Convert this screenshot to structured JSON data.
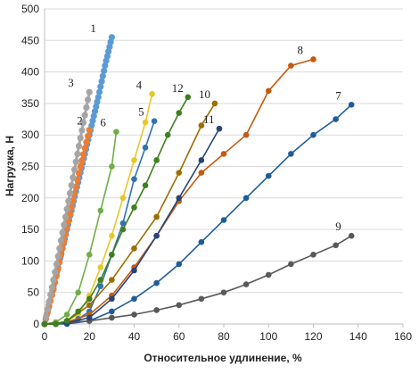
{
  "chart_data": {
    "type": "line",
    "xlabel": "Относительное удлинение, %",
    "ylabel": "Нагрузка, Н",
    "xlim": [
      0,
      160
    ],
    "ylim": [
      0,
      500
    ],
    "x_ticks": [
      0,
      20,
      40,
      60,
      80,
      100,
      120,
      140,
      160
    ],
    "y_ticks": [
      0,
      50,
      100,
      150,
      200,
      250,
      300,
      350,
      400,
      450,
      500
    ],
    "grid": "horizontal",
    "legend": "none; series numbers are printed at the end of each curve",
    "series": [
      {
        "name": "1",
        "color": "#5b9bd5",
        "dense": true,
        "label_offset": [
          -6,
          0
        ],
        "x": [
          0,
          3,
          6,
          9,
          12,
          15,
          18,
          21,
          24,
          27,
          30
        ],
        "y": [
          0,
          45,
          90,
          135,
          180,
          225,
          270,
          315,
          360,
          410,
          455
        ]
      },
      {
        "name": "2",
        "color": "#ed7d31",
        "dense": true,
        "label_offset": [
          4,
          0
        ],
        "x": [
          0,
          4,
          8,
          12,
          16,
          20
        ],
        "y": [
          0,
          55,
          120,
          185,
          250,
          308
        ]
      },
      {
        "name": "3",
        "color": "#a5a5a5",
        "dense": true,
        "label_offset": [
          -6,
          0
        ],
        "x": [
          0,
          4,
          8,
          12,
          16,
          20
        ],
        "y": [
          0,
          70,
          145,
          220,
          295,
          368
        ]
      },
      {
        "name": "4",
        "color": "#e8c72b",
        "dense": false,
        "label_offset": [
          0,
          0
        ],
        "x": [
          0,
          5,
          10,
          15,
          20,
          25,
          30,
          35,
          40,
          45,
          48
        ],
        "y": [
          0,
          0,
          5,
          15,
          45,
          90,
          140,
          200,
          260,
          320,
          365
        ]
      },
      {
        "name": "5",
        "color": "#2e74b5",
        "dense": false,
        "label_offset": [
          0,
          0
        ],
        "x": [
          0,
          5,
          10,
          15,
          20,
          25,
          30,
          35,
          40,
          45,
          49
        ],
        "y": [
          0,
          0,
          3,
          8,
          20,
          60,
          110,
          160,
          230,
          280,
          322
        ]
      },
      {
        "name": "6",
        "color": "#70ad47",
        "dense": false,
        "label_offset": [
          0,
          0
        ],
        "x": [
          0,
          5,
          10,
          15,
          20,
          25,
          30,
          32
        ],
        "y": [
          0,
          3,
          15,
          50,
          110,
          180,
          250,
          305
        ]
      },
      {
        "name": "7",
        "color": "#1f5c99",
        "dense": false,
        "label_offset": [
          0,
          0
        ],
        "x": [
          0,
          10,
          20,
          30,
          40,
          50,
          60,
          70,
          80,
          90,
          100,
          110,
          120,
          130,
          137
        ],
        "y": [
          0,
          0,
          5,
          20,
          40,
          65,
          95,
          130,
          165,
          200,
          235,
          270,
          300,
          325,
          348
        ]
      },
      {
        "name": "8",
        "color": "#c55a11",
        "dense": false,
        "label_offset": [
          0,
          0
        ],
        "x": [
          0,
          10,
          20,
          30,
          40,
          50,
          60,
          70,
          80,
          90,
          100,
          110,
          120
        ],
        "y": [
          0,
          3,
          15,
          45,
          90,
          140,
          195,
          240,
          270,
          300,
          370,
          410,
          420
        ]
      },
      {
        "name": "9",
        "color": "#595959",
        "dense": false,
        "label_offset": [
          0,
          0
        ],
        "x": [
          0,
          10,
          20,
          30,
          40,
          50,
          60,
          70,
          80,
          90,
          100,
          110,
          120,
          130,
          137
        ],
        "y": [
          0,
          2,
          5,
          10,
          15,
          22,
          30,
          40,
          50,
          63,
          78,
          95,
          110,
          125,
          140
        ]
      },
      {
        "name": "10",
        "color": "#9c6e00",
        "dense": false,
        "label_offset": [
          0,
          0
        ],
        "x": [
          0,
          5,
          10,
          20,
          30,
          40,
          50,
          60,
          70,
          76
        ],
        "y": [
          0,
          0,
          5,
          30,
          70,
          120,
          170,
          240,
          315,
          350
        ]
      },
      {
        "name": "11",
        "color": "#264478",
        "dense": false,
        "label_offset": [
          0,
          0
        ],
        "x": [
          0,
          10,
          20,
          30,
          40,
          50,
          60,
          70,
          78
        ],
        "y": [
          0,
          2,
          10,
          40,
          85,
          140,
          200,
          260,
          310
        ]
      },
      {
        "name": "12",
        "color": "#3f7f1f",
        "dense": false,
        "label_offset": [
          0,
          0
        ],
        "x": [
          0,
          5,
          10,
          15,
          20,
          25,
          30,
          35,
          40,
          45,
          50,
          55,
          60,
          64
        ],
        "y": [
          0,
          0,
          5,
          20,
          40,
          70,
          110,
          150,
          185,
          220,
          260,
          300,
          335,
          360
        ]
      }
    ]
  }
}
